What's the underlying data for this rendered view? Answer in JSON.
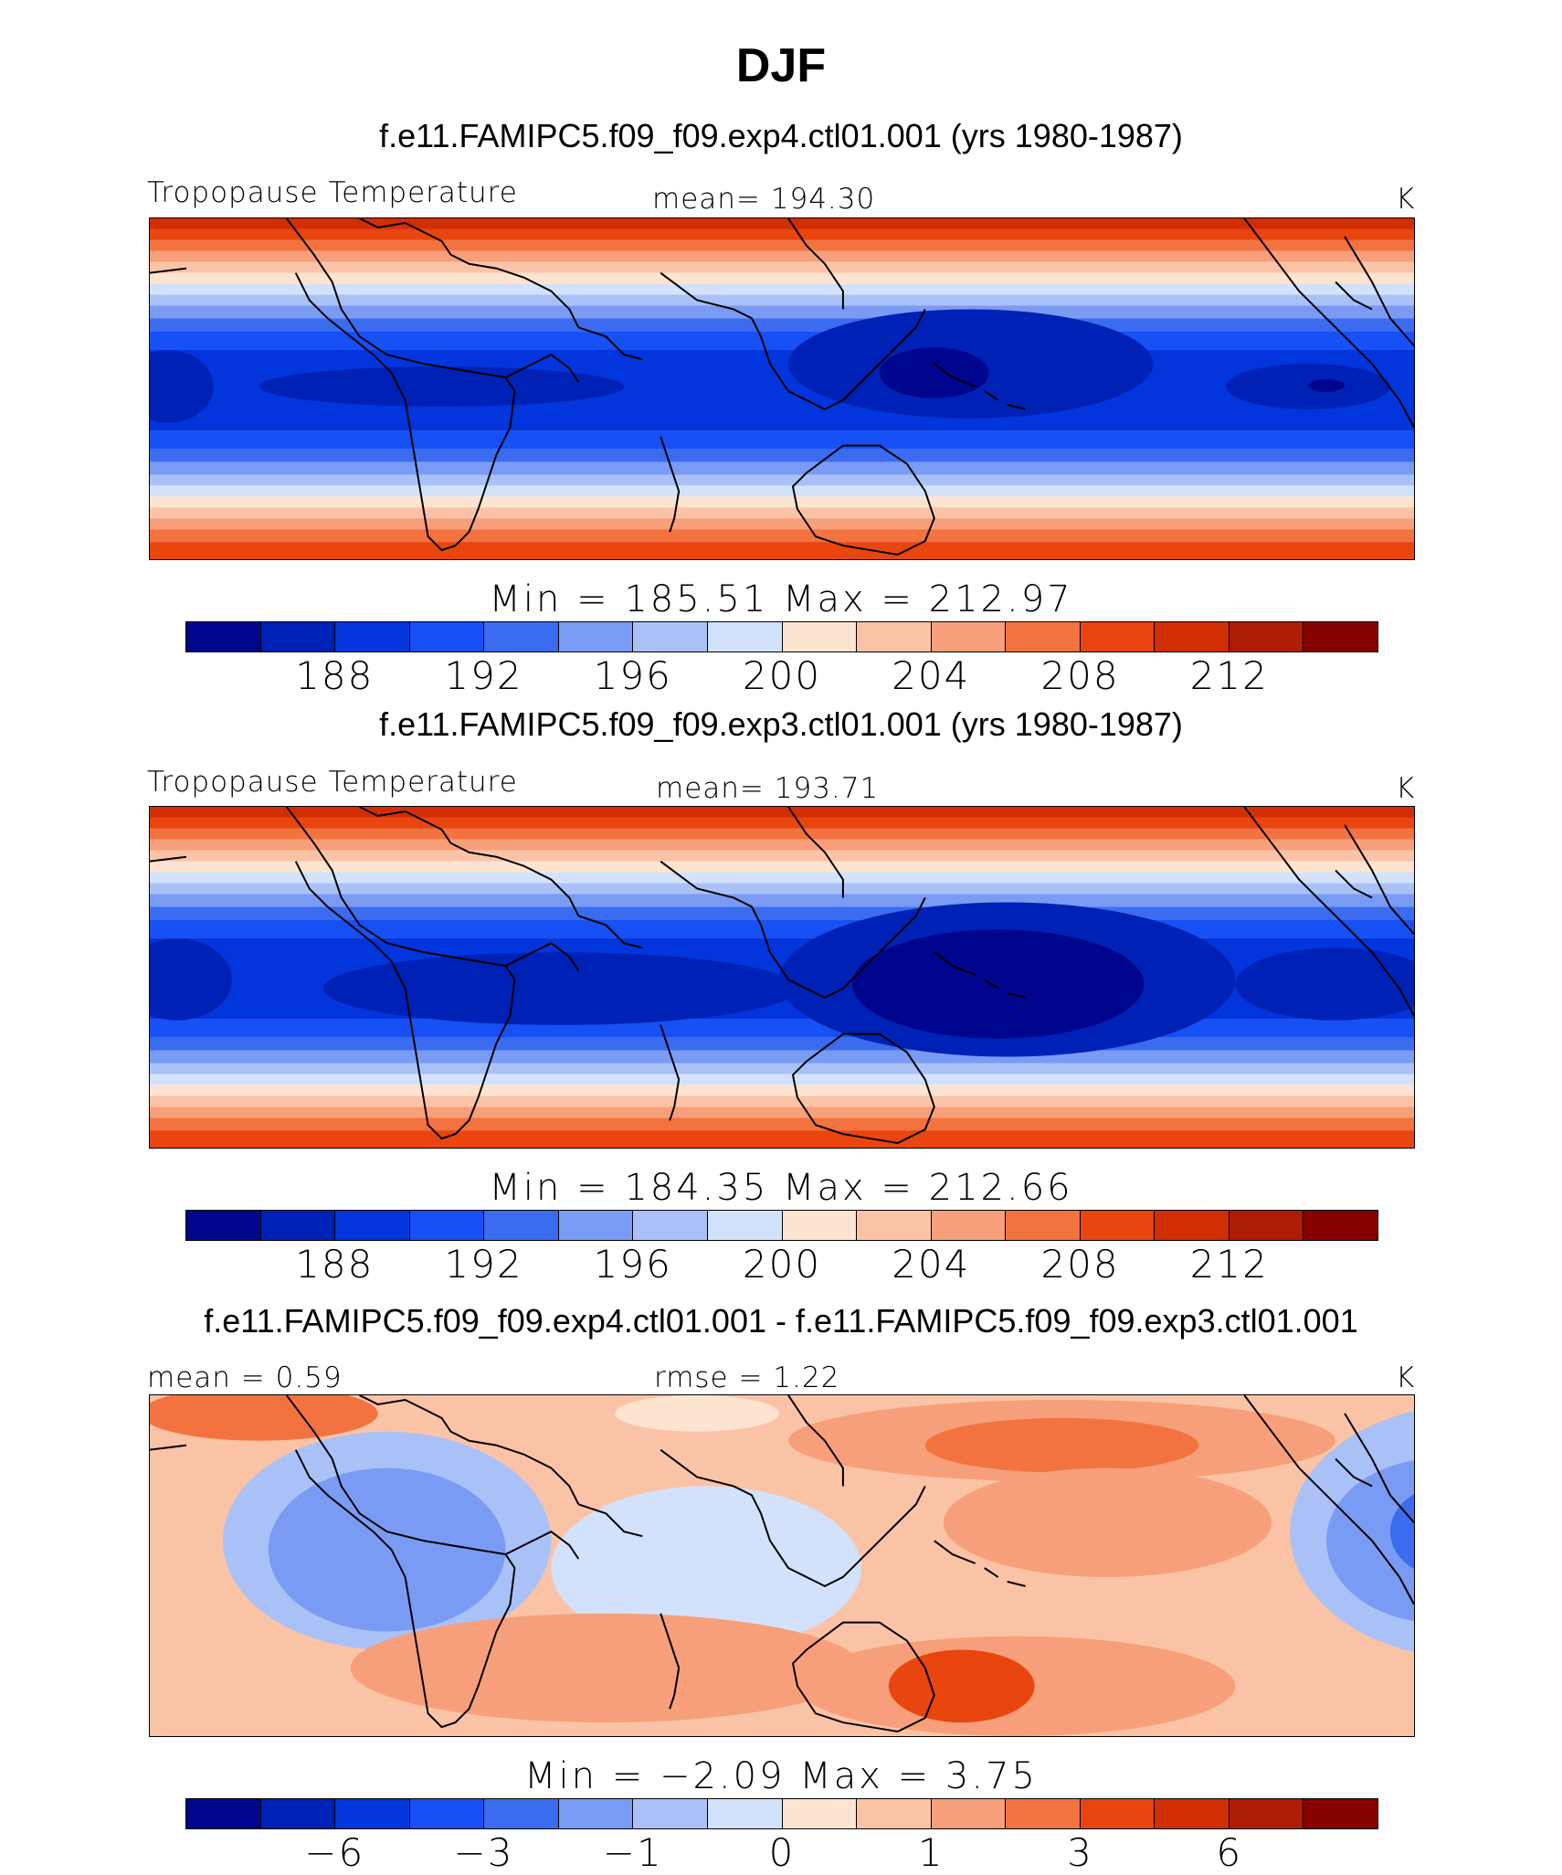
{
  "title": "DJF",
  "panels": [
    {
      "subtitle": "f.e11.FAMIPC5.f09_f09.exp4.ctl01.001 (yrs 1980-1987)",
      "left_label": "Tropopause Temperature",
      "center_label": "mean=  194.30",
      "right_label": "K",
      "minmax": "Min  =  185.51  Max  =  212.97",
      "tick_labels": [
        "188",
        "192",
        "196",
        "200",
        "204",
        "208",
        "212"
      ],
      "min_value": 185.51,
      "max_value": 212.97,
      "mean_value": 194.3
    },
    {
      "subtitle": "f.e11.FAMIPC5.f09_f09.exp3.ctl01.001 (yrs 1980-1987)",
      "left_label": "Tropopause Temperature",
      "center_label": "mean=  193.71",
      "right_label": "K",
      "minmax": "Min  =  184.35  Max  =  212.66",
      "tick_labels": [
        "188",
        "192",
        "196",
        "200",
        "204",
        "208",
        "212"
      ],
      "min_value": 184.35,
      "max_value": 212.66,
      "mean_value": 193.71
    },
    {
      "subtitle": "f.e11.FAMIPC5.f09_f09.exp4.ctl01.001 - f.e11.FAMIPC5.f09_f09.exp3.ctl01.001",
      "left_label": "mean =     0.59",
      "center_label": "rmse =     1.22",
      "right_label": "K",
      "minmax": "Min  =    −2.09  Max  =      3.75",
      "tick_labels": [
        "−6",
        "−3",
        "−1",
        "0",
        "1",
        "3",
        "6"
      ],
      "min_value": -2.09,
      "max_value": 3.75,
      "mean_value": 0.59,
      "rmse_value": 1.22
    }
  ],
  "colorbar_colors": [
    "#00058e",
    "#0021b5",
    "#0235dc",
    "#1750f5",
    "#3b6cf0",
    "#7a9bf3",
    "#a9c1f7",
    "#d3e2fb",
    "#fde4d0",
    "#fbc3a6",
    "#f79f7a",
    "#f2733f",
    "#e9450e",
    "#d22e04",
    "#ad1c03",
    "#850100"
  ],
  "units": "K"
}
